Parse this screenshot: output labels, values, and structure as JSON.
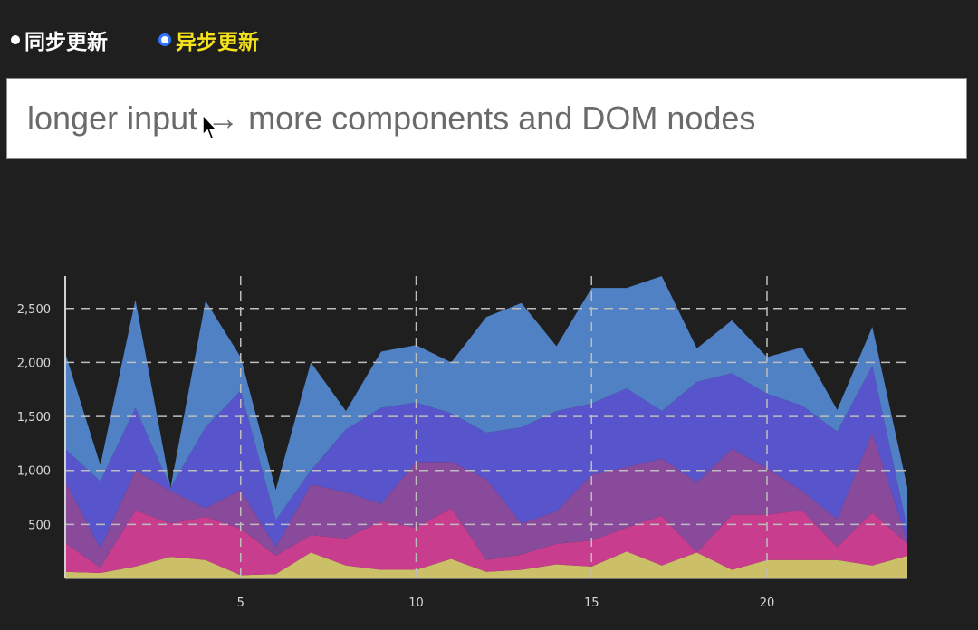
{
  "modes": {
    "sync_label": "同步更新",
    "async_label": "异步更新",
    "selected": "async"
  },
  "input": {
    "value": "longer input → more components and DOM nodes"
  },
  "colors": {
    "background": "#1f1f1f",
    "selected_mode": "#f5e21a",
    "radio_accent": "#2e74ff",
    "grid": "#bdbdbd",
    "axis_text": "#d8d8d8"
  },
  "chart_data": {
    "type": "area",
    "stacked": true,
    "grid": true,
    "x": [
      0,
      1,
      2,
      3,
      4,
      5,
      6,
      7,
      8,
      9,
      10,
      11,
      12,
      13,
      14,
      15,
      16,
      17,
      18,
      19,
      20,
      21,
      22,
      23,
      24
    ],
    "xlim": [
      0,
      24
    ],
    "ylim": [
      0,
      2800
    ],
    "xticks": [
      5,
      10,
      15,
      20
    ],
    "yticks": [
      500,
      1000,
      1500,
      2000,
      2500
    ],
    "ytick_labels": [
      "500",
      "1,000",
      "1,500",
      "2,000",
      "2,500"
    ],
    "series": [
      {
        "color": "#cbbf68",
        "values": [
          60,
          50,
          110,
          200,
          170,
          30,
          40,
          240,
          120,
          80,
          80,
          180,
          60,
          80,
          130,
          110,
          250,
          120,
          240,
          80,
          170,
          170,
          170,
          120,
          210
        ]
      },
      {
        "color": "#c93d8e",
        "values": [
          270,
          50,
          520,
          310,
          400,
          430,
          170,
          160,
          250,
          450,
          390,
          470,
          110,
          140,
          190,
          240,
          220,
          460,
          0,
          510,
          420,
          460,
          120,
          490,
          110
        ]
      },
      {
        "color": "#8a4a9b",
        "values": [
          570,
          180,
          370,
          300,
          80,
          360,
          80,
          470,
          430,
          160,
          610,
          430,
          750,
          290,
          300,
          610,
          560,
          530,
          650,
          610,
          430,
          180,
          260,
          740,
          20
        ]
      },
      {
        "color": "#5854cc",
        "values": [
          300,
          620,
          580,
          30,
          750,
          920,
          250,
          130,
          580,
          890,
          550,
          450,
          430,
          890,
          930,
          660,
          730,
          440,
          930,
          700,
          690,
          790,
          810,
          620,
          120
        ]
      },
      {
        "color": "#4f81c4",
        "values": [
          890,
          150,
          1000,
          0,
          1170,
          310,
          280,
          1000,
          170,
          520,
          530,
          470,
          1070,
          1150,
          600,
          1070,
          930,
          1250,
          310,
          490,
          340,
          540,
          200,
          360,
          380
        ]
      }
    ]
  }
}
